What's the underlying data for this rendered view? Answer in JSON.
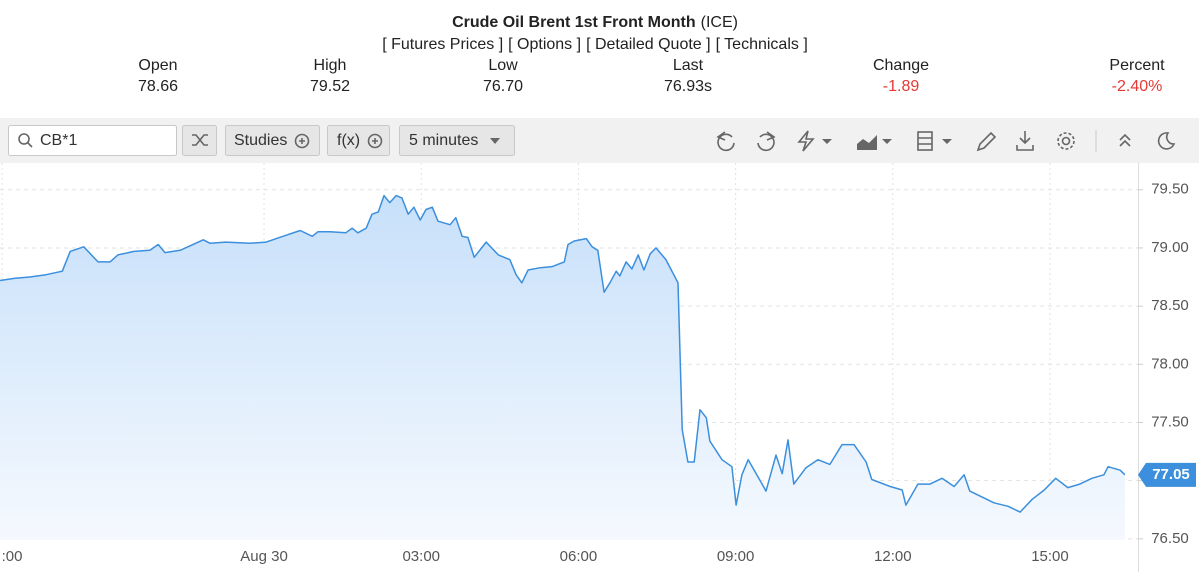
{
  "header": {
    "title": "Crude Oil Brent 1st Front Month",
    "exchange": "(ICE)",
    "links": [
      "[ Futures Prices ]",
      "[ Options ]",
      "[ Detailed Quote ]",
      "[ Technicals ]"
    ]
  },
  "quote": [
    {
      "label": "Open",
      "value": "78.66"
    },
    {
      "label": "High",
      "value": "79.52"
    },
    {
      "label": "Low",
      "value": "76.70"
    },
    {
      "label": "Last",
      "value": "76.93s"
    },
    {
      "label": "Change",
      "value": "-1.89"
    },
    {
      "label": "Percent",
      "value": "-2.40%"
    }
  ],
  "toolbar": {
    "search": "CB*1",
    "studies": "Studies",
    "functions": "f(x)",
    "interval": "5 minutes"
  },
  "chart_data": {
    "type": "area",
    "color": "#3b8fdc",
    "grid": true,
    "last_price": 77.05,
    "xlim": [
      -5.04,
      16.68
    ],
    "xticks": [
      {
        "value": -5,
        "label": ":00"
      },
      {
        "value": 0,
        "label": "Aug 30"
      },
      {
        "value": 3,
        "label": "03:00"
      },
      {
        "value": 6,
        "label": "06:00"
      },
      {
        "value": 9,
        "label": "09:00"
      },
      {
        "value": 12,
        "label": "12:00"
      },
      {
        "value": 15,
        "label": "15:00"
      }
    ],
    "ylim": [
      76.49,
      79.73
    ],
    "yticks": [
      {
        "value": 76.5,
        "label": "76.50"
      },
      {
        "value": 77,
        "label": "77.00"
      },
      {
        "value": 77.5,
        "label": "77.50"
      },
      {
        "value": 78,
        "label": "78.00"
      },
      {
        "value": 78.5,
        "label": "78.50"
      },
      {
        "value": 79,
        "label": "79.00"
      },
      {
        "value": 79.5,
        "label": "79.50"
      }
    ],
    "x": [
      -5.04,
      -4.75,
      -4.47,
      -4.16,
      -3.85,
      -3.7,
      -3.44,
      -3.17,
      -2.94,
      -2.79,
      -2.48,
      -2.18,
      -2.02,
      -1.89,
      -1.6,
      -1.16,
      -1.03,
      -0.73,
      -0.27,
      0.04,
      0.36,
      0.69,
      0.92,
      1.03,
      1.26,
      1.56,
      1.68,
      1.79,
      1.95,
      2.06,
      2.18,
      2.29,
      2.4,
      2.52,
      2.63,
      2.75,
      2.86,
      2.98,
      3.09,
      3.21,
      3.32,
      3.55,
      3.66,
      3.78,
      3.89,
      4.01,
      4.24,
      4.47,
      4.69,
      4.81,
      4.92,
      5.04,
      5.27,
      5.5,
      5.73,
      5.8,
      5.92,
      6.15,
      6.26,
      6.37,
      6.49,
      6.6,
      6.72,
      6.79,
      6.91,
      7.02,
      7.14,
      7.25,
      7.37,
      7.48,
      7.67,
      7.9,
      7.98,
      8.09,
      8.21,
      8.32,
      8.44,
      8.51,
      8.74,
      8.93,
      9.01,
      9.12,
      9.24,
      9.47,
      9.58,
      9.77,
      9.89,
      10.0,
      10.11,
      10.34,
      10.57,
      10.8,
      11.03,
      11.26,
      11.49,
      11.6,
      11.95,
      12.18,
      12.25,
      12.48,
      12.71,
      12.94,
      13.17,
      13.36,
      13.47,
      13.7,
      13.93,
      14.2,
      14.43,
      14.66,
      14.89,
      15.11,
      15.34,
      15.57,
      15.8,
      16.03,
      16.11,
      16.34,
      16.43
    ],
    "values": [
      78.72,
      78.74,
      78.75,
      78.77,
      78.8,
      78.97,
      79.01,
      78.88,
      78.88,
      78.94,
      78.97,
      78.98,
      79.03,
      78.96,
      78.98,
      79.07,
      79.04,
      79.05,
      79.04,
      79.05,
      79.1,
      79.15,
      79.1,
      79.14,
      79.14,
      79.13,
      79.17,
      79.13,
      79.17,
      79.29,
      79.31,
      79.45,
      79.39,
      79.45,
      79.43,
      79.29,
      79.35,
      79.24,
      79.33,
      79.35,
      79.23,
      79.2,
      79.26,
      79.1,
      79.09,
      78.92,
      79.05,
      78.94,
      78.9,
      78.77,
      78.7,
      78.81,
      78.83,
      78.84,
      78.88,
      79.03,
      79.06,
      79.08,
      79.01,
      78.98,
      78.62,
      78.7,
      78.8,
      78.76,
      78.88,
      78.82,
      78.94,
      78.81,
      78.95,
      79.0,
      78.9,
      78.7,
      77.44,
      77.16,
      77.16,
      77.61,
      77.54,
      77.34,
      77.18,
      77.12,
      76.79,
      77.05,
      77.18,
      77.0,
      76.91,
      77.22,
      77.06,
      77.35,
      76.97,
      77.11,
      77.18,
      77.14,
      77.31,
      77.31,
      77.16,
      77.01,
      76.95,
      76.92,
      76.79,
      76.97,
      76.97,
      77.02,
      76.95,
      77.05,
      76.91,
      76.86,
      76.81,
      76.78,
      76.73,
      76.84,
      76.92,
      77.02,
      76.94,
      76.97,
      77.02,
      77.05,
      77.12,
      77.09,
      77.05
    ]
  }
}
